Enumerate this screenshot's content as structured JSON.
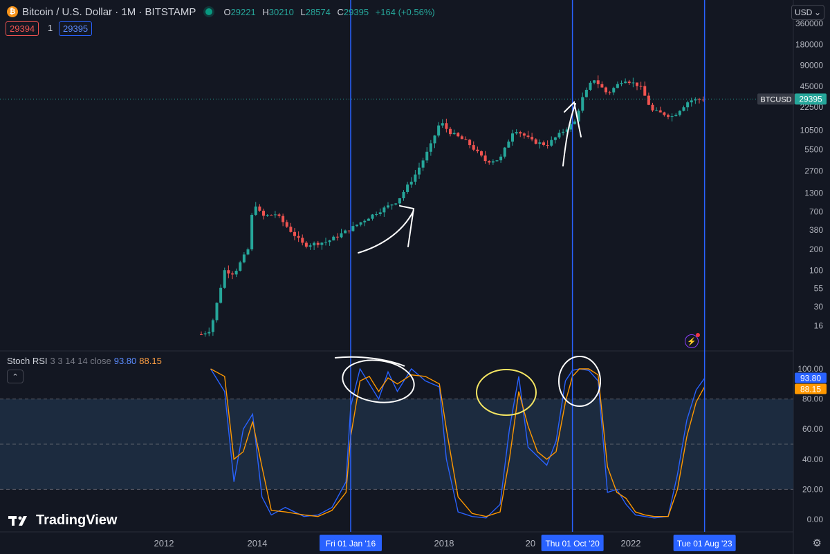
{
  "header": {
    "coin_glyph": "₿",
    "title": "Bitcoin / U.S. Dollar · 1M · BITSTAMP",
    "ohlc": [
      {
        "k": "O",
        "v": "29221"
      },
      {
        "k": "H",
        "v": "30210"
      },
      {
        "k": "L",
        "v": "28574"
      },
      {
        "k": "C",
        "v": "29395"
      }
    ],
    "change": "+164 (+0.56%)",
    "sell_price": "29394",
    "qty": "1",
    "buy_price": "29395"
  },
  "currency": "USD",
  "price_axis_labels": [
    "360000",
    "180000",
    "90000",
    "45000",
    "22500",
    "10500",
    "5500",
    "2700",
    "1300",
    "700",
    "380",
    "200",
    "100",
    "55",
    "30",
    "16"
  ],
  "last_price": {
    "symbol": "BTCUSD",
    "value": "29395"
  },
  "time_axis": {
    "ticks": [
      {
        "label": "2012",
        "year": 2012.0
      },
      {
        "label": "2014",
        "year": 2014.0
      },
      {
        "label": "2018",
        "year": 2018.0
      },
      {
        "label": "20",
        "year": 2019.85
      },
      {
        "label": "2022",
        "year": 2022.0
      }
    ],
    "markers": [
      {
        "label": "Fri 01 Jan '16",
        "year": 2016.0
      },
      {
        "label": "Thu 01 Oct '20",
        "year": 2020.75
      },
      {
        "label": "Tue 01 Aug '23",
        "year": 2023.58
      }
    ]
  },
  "indicator": {
    "name": "Stoch RSI",
    "params": "3 3 14 14 close",
    "k_value": "93.80",
    "d_value": "88.15",
    "axis_labels": [
      "100.00",
      "80.00",
      "60.00",
      "40.00",
      "20.00",
      "0.00"
    ]
  },
  "brand": "TradingView",
  "colors": {
    "background": "#131722",
    "up": "#26a69a",
    "down": "#ef5350",
    "k_line": "#2962ff",
    "d_line": "#ff9800",
    "marker_line": "#2962ff",
    "band_fill": "#1c2b3f",
    "annotation_white": "#ffffff",
    "annotation_yellow": "#f5e663"
  },
  "chart_data": [
    {
      "type": "candlestick",
      "title": "Bitcoin / U.S. Dollar · 1M · BITSTAMP",
      "y_scale": "log",
      "ylim": [
        10,
        360000
      ],
      "x_range": [
        2011.0,
        2024.2
      ],
      "key_points": [
        {
          "x": 2012.8,
          "close": 12
        },
        {
          "x": 2013.0,
          "close": 14
        },
        {
          "x": 2013.3,
          "close": 100
        },
        {
          "x": 2013.5,
          "close": 90
        },
        {
          "x": 2013.8,
          "close": 200
        },
        {
          "x": 2013.92,
          "close": 1000
        },
        {
          "x": 2014.1,
          "close": 600
        },
        {
          "x": 2014.4,
          "close": 650
        },
        {
          "x": 2014.7,
          "close": 380
        },
        {
          "x": 2015.0,
          "close": 230
        },
        {
          "x": 2015.5,
          "close": 260
        },
        {
          "x": 2016.0,
          "close": 400
        },
        {
          "x": 2016.5,
          "close": 650
        },
        {
          "x": 2017.0,
          "close": 1000
        },
        {
          "x": 2017.4,
          "close": 2500
        },
        {
          "x": 2017.7,
          "close": 6000
        },
        {
          "x": 2017.92,
          "close": 14000
        },
        {
          "x": 2018.1,
          "close": 10000
        },
        {
          "x": 2018.5,
          "close": 7000
        },
        {
          "x": 2018.9,
          "close": 3700
        },
        {
          "x": 2019.2,
          "close": 4000
        },
        {
          "x": 2019.5,
          "close": 11000
        },
        {
          "x": 2019.9,
          "close": 7200
        },
        {
          "x": 2020.2,
          "close": 6400
        },
        {
          "x": 2020.5,
          "close": 9500
        },
        {
          "x": 2020.8,
          "close": 13800
        },
        {
          "x": 2020.95,
          "close": 29000
        },
        {
          "x": 2021.2,
          "close": 58000
        },
        {
          "x": 2021.5,
          "close": 35000
        },
        {
          "x": 2021.85,
          "close": 57000
        },
        {
          "x": 2022.2,
          "close": 45000
        },
        {
          "x": 2022.45,
          "close": 20000
        },
        {
          "x": 2022.9,
          "close": 16500
        },
        {
          "x": 2023.25,
          "close": 28000
        },
        {
          "x": 2023.58,
          "close": 29395
        }
      ]
    },
    {
      "type": "line",
      "title": "Stoch RSI",
      "ylim": [
        0,
        100
      ],
      "bands": [
        20,
        50,
        80
      ],
      "series": [
        {
          "name": "K",
          "x": [
            2013.0,
            2013.3,
            2013.5,
            2013.7,
            2013.9,
            2014.1,
            2014.3,
            2014.6,
            2015.0,
            2015.3,
            2015.6,
            2015.9,
            2016.0,
            2016.2,
            2016.4,
            2016.6,
            2016.8,
            2017.0,
            2017.3,
            2017.6,
            2017.9,
            2018.05,
            2018.3,
            2018.6,
            2018.9,
            2019.2,
            2019.4,
            2019.6,
            2019.8,
            2020.0,
            2020.2,
            2020.4,
            2020.6,
            2020.75,
            2020.9,
            2021.1,
            2021.3,
            2021.5,
            2021.7,
            2021.9,
            2022.1,
            2022.3,
            2022.5,
            2022.8,
            2023.0,
            2023.2,
            2023.4,
            2023.58
          ],
          "values": [
            100,
            85,
            25,
            60,
            70,
            15,
            3,
            8,
            2,
            3,
            8,
            25,
            75,
            100,
            90,
            80,
            98,
            85,
            100,
            92,
            88,
            40,
            5,
            2,
            1,
            10,
            60,
            95,
            48,
            42,
            36,
            52,
            92,
            99,
            100,
            99,
            92,
            18,
            20,
            10,
            3,
            2,
            1,
            2,
            30,
            66,
            86,
            93.8
          ]
        },
        {
          "name": "D",
          "x": [
            2013.0,
            2013.3,
            2013.5,
            2013.7,
            2013.9,
            2014.1,
            2014.3,
            2014.6,
            2015.0,
            2015.3,
            2015.6,
            2015.9,
            2016.0,
            2016.2,
            2016.4,
            2016.6,
            2016.8,
            2017.0,
            2017.3,
            2017.6,
            2017.9,
            2018.05,
            2018.3,
            2018.6,
            2018.9,
            2019.2,
            2019.4,
            2019.6,
            2019.8,
            2020.0,
            2020.2,
            2020.4,
            2020.6,
            2020.75,
            2020.9,
            2021.1,
            2021.3,
            2021.5,
            2021.7,
            2021.9,
            2022.1,
            2022.3,
            2022.5,
            2022.8,
            2023.0,
            2023.2,
            2023.4,
            2023.58
          ],
          "values": [
            100,
            95,
            40,
            45,
            65,
            35,
            6,
            5,
            3,
            2,
            6,
            18,
            55,
            92,
            95,
            85,
            94,
            90,
            96,
            95,
            90,
            60,
            15,
            4,
            2,
            5,
            40,
            85,
            62,
            45,
            40,
            45,
            78,
            95,
            100,
            100,
            96,
            35,
            18,
            14,
            5,
            3,
            2,
            2,
            20,
            55,
            78,
            88.15
          ]
        }
      ]
    }
  ]
}
